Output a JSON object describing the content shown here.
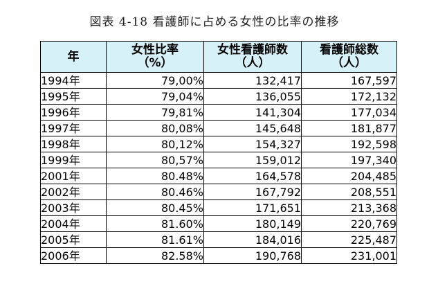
{
  "caption": "図表 4-18 看護師に占める女性の比率の推移",
  "colors": {
    "header_bg": "#d7f1f8",
    "border": "#000000"
  },
  "table": {
    "headers": [
      {
        "line1": "年",
        "line2": ""
      },
      {
        "line1": "女性比率",
        "line2": "（%）"
      },
      {
        "line1": "女性看護師数",
        "line2": "（人）"
      },
      {
        "line1": "看護師総数",
        "line2": "（人）"
      }
    ],
    "rows": [
      {
        "year": "1994年",
        "ratio": "79,00%",
        "female": "132,417",
        "total": "167,597"
      },
      {
        "year": "1995年",
        "ratio": "79,04%",
        "female": "136,055",
        "total": "172,132"
      },
      {
        "year": "1996年",
        "ratio": "79,81%",
        "female": "141,304",
        "total": "177,034"
      },
      {
        "year": "1997年",
        "ratio": "80,08%",
        "female": "145,648",
        "total": "181,877"
      },
      {
        "year": "1998年",
        "ratio": "80,12%",
        "female": "154,327",
        "total": "192,598"
      },
      {
        "year": "1999年",
        "ratio": "80,57%",
        "female": "159,012",
        "total": "197,340"
      },
      {
        "year": "2001年",
        "ratio": "80.48%",
        "female": "164,578",
        "total": "204,485"
      },
      {
        "year": "2002年",
        "ratio": "80.46%",
        "female": "167,792",
        "total": "208,551"
      },
      {
        "year": "2003年",
        "ratio": "80.45%",
        "female": "171,651",
        "total": "213,368"
      },
      {
        "year": "2004年",
        "ratio": "81.60%",
        "female": "180,149",
        "total": "220,769"
      },
      {
        "year": "2005年",
        "ratio": "81.61%",
        "female": "184,016",
        "total": "225,487"
      },
      {
        "year": "2006年",
        "ratio": "82.58%",
        "female": "190,768",
        "total": "231,001"
      }
    ]
  }
}
